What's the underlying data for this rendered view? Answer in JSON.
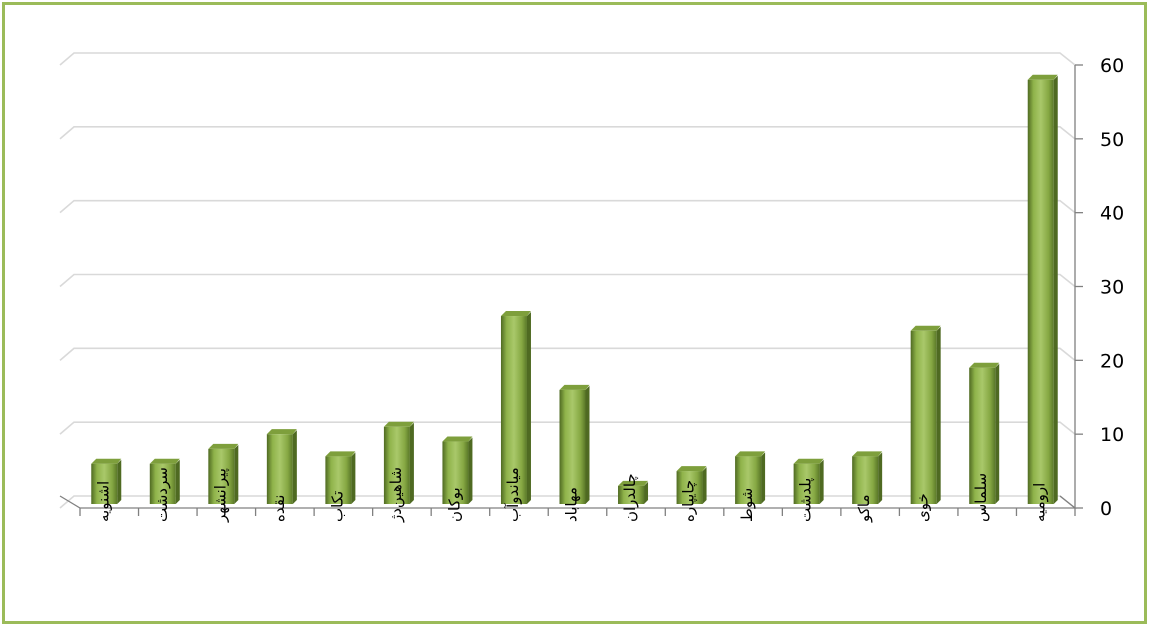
{
  "chart_data": {
    "type": "bar",
    "categories": [
      "اشنویه",
      "سردشت",
      "پیرانشهر",
      "نقده",
      "تکاب",
      "شاهین‌دژ",
      "بوکان",
      "میاندوآب",
      "مهاباد",
      "چالدران",
      "چایپاره",
      "شوط",
      "پلدشت",
      "ماکو",
      "خوی",
      "سلماس",
      "ارومیه"
    ],
    "values": [
      6,
      6,
      8,
      10,
      7,
      11,
      9,
      26,
      16,
      3,
      5,
      7,
      6,
      7,
      24,
      19,
      58
    ],
    "title": "",
    "xlabel": "",
    "ylabel": "",
    "ylim": [
      0,
      60
    ],
    "yticks": [
      0,
      10,
      20,
      30,
      40,
      50,
      60
    ],
    "grid": true,
    "y_axis_side": "right",
    "bar_color": "#9bbb59",
    "frame_color": "#9bbb59"
  }
}
